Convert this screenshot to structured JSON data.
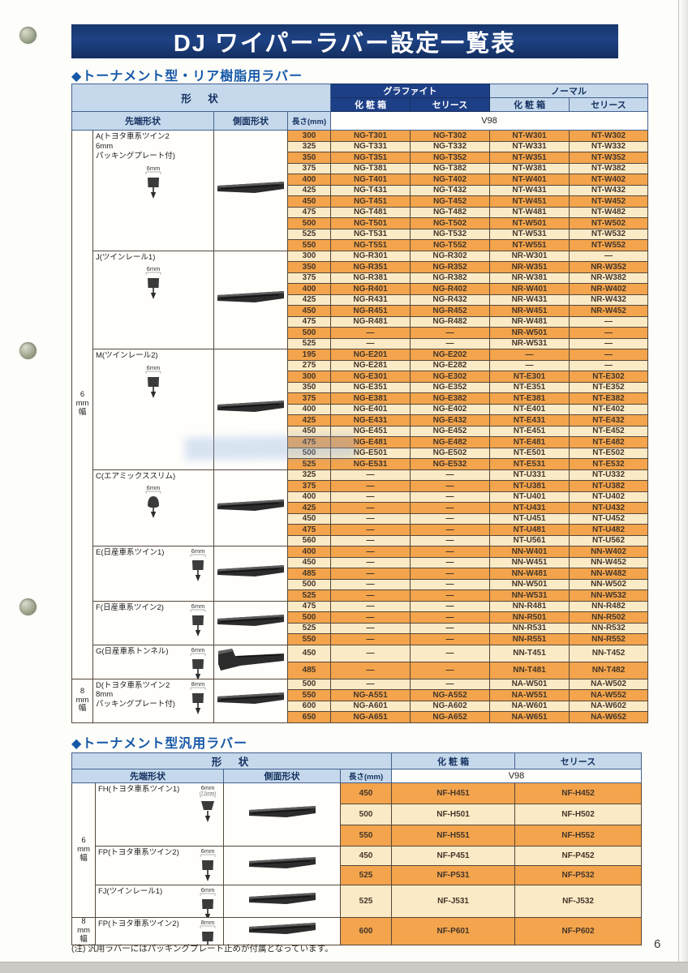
{
  "page": {
    "title": "DJ ワイパーラバー設定一覧表",
    "note": "(注) 汎用ラバーにはパッキングプレート止めが付属となっています。",
    "page_number": "6"
  },
  "colors": {
    "title_bar_navy": "#18376e",
    "header_navy": "#1d3f86",
    "header_light_blue": "#c6d9ec",
    "section_heading_blue": "#1558a8",
    "row_orange": "#f3a44c",
    "row_cream": "#fbeac6"
  },
  "table1": {
    "section_title": "◆トーナメント型・リア樹脂用ラバー",
    "headers": {
      "shape": "形　状",
      "graphite": "グラファイト",
      "normal": "ノーマル",
      "box": "化 粧 箱",
      "series": "セリース",
      "tip": "先端形状",
      "side": "側面形状",
      "length": "長さ(mm)",
      "v98": "V98"
    },
    "width_groups": [
      {
        "label": "6\nmm\n幅",
        "rows": 49
      },
      {
        "label": "8\nmm\n幅",
        "rows": 4
      }
    ],
    "groups": [
      {
        "id": "A",
        "label": "A(トヨタ車系ツイン2\n 6mm\n パッキングプレート付)",
        "size": "6mm",
        "tip_icon": "tip-cross-section-icon",
        "side_icon": "side-profile-photo",
        "rows": [
          {
            "len": "300",
            "p": [
              "NG-T301",
              "NG-T302",
              "NT-W301",
              "NT-W302"
            ]
          },
          {
            "len": "325",
            "p": [
              "NG-T331",
              "NG-T332",
              "NT-W331",
              "NT-W332"
            ]
          },
          {
            "len": "350",
            "p": [
              "NG-T351",
              "NG-T352",
              "NT-W351",
              "NT-W352"
            ]
          },
          {
            "len": "375",
            "p": [
              "NG-T381",
              "NG-T382",
              "NT-W381",
              "NT-W382"
            ]
          },
          {
            "len": "400",
            "p": [
              "NG-T401",
              "NG-T402",
              "NT-W401",
              "NT-W402"
            ]
          },
          {
            "len": "425",
            "p": [
              "NG-T431",
              "NG-T432",
              "NT-W431",
              "NT-W432"
            ]
          },
          {
            "len": "450",
            "p": [
              "NG-T451",
              "NG-T452",
              "NT-W451",
              "NT-W452"
            ]
          },
          {
            "len": "475",
            "p": [
              "NG-T481",
              "NG-T482",
              "NT-W481",
              "NT-W482"
            ]
          },
          {
            "len": "500",
            "p": [
              "NG-T501",
              "NG-T502",
              "NT-W501",
              "NT-W502"
            ]
          },
          {
            "len": "525",
            "p": [
              "NG-T531",
              "NG-T532",
              "NT-W531",
              "NT-W532"
            ]
          },
          {
            "len": "550",
            "p": [
              "NG-T551",
              "NG-T552",
              "NT-W551",
              "NT-W552"
            ]
          }
        ]
      },
      {
        "id": "J",
        "label": "J(ツインレール1)",
        "size": "6mm",
        "tip_icon": "tip-cross-section-icon",
        "side_icon": "side-profile-photo",
        "rows": [
          {
            "len": "300",
            "p": [
              "NG-R301",
              "NG-R302",
              "NR-W301",
              "―"
            ]
          },
          {
            "len": "350",
            "p": [
              "NG-R351",
              "NG-R352",
              "NR-W351",
              "NR-W352"
            ]
          },
          {
            "len": "375",
            "p": [
              "NG-R381",
              "NG-R382",
              "NR-W381",
              "NR-W382"
            ]
          },
          {
            "len": "400",
            "p": [
              "NG-R401",
              "NG-R402",
              "NR-W401",
              "NR-W402"
            ]
          },
          {
            "len": "425",
            "p": [
              "NG-R431",
              "NG-R432",
              "NR-W431",
              "NR-W432"
            ]
          },
          {
            "len": "450",
            "p": [
              "NG-R451",
              "NG-R452",
              "NR-W451",
              "NR-W452"
            ]
          },
          {
            "len": "475",
            "p": [
              "NG-R481",
              "NG-R482",
              "NR-W481",
              "―"
            ]
          },
          {
            "len": "500",
            "p": [
              "―",
              "―",
              "NR-W501",
              "―"
            ]
          },
          {
            "len": "525",
            "p": [
              "―",
              "―",
              "NR-W531",
              "―"
            ]
          }
        ]
      },
      {
        "id": "M",
        "label": "M(ツインレール2)",
        "size": "6mm",
        "tip_icon": "tip-cross-section-icon",
        "side_icon": "side-profile-photo",
        "rows": [
          {
            "len": "195",
            "p": [
              "NG-E201",
              "NG-E202",
              "―",
              "―"
            ]
          },
          {
            "len": "275",
            "p": [
              "NG-E281",
              "NG-E282",
              "―",
              "―"
            ]
          },
          {
            "len": "300",
            "p": [
              "NG-E301",
              "NG-E302",
              "NT-E301",
              "NT-E302"
            ]
          },
          {
            "len": "350",
            "p": [
              "NG-E351",
              "NG-E352",
              "NT-E351",
              "NT-E352"
            ]
          },
          {
            "len": "375",
            "p": [
              "NG-E381",
              "NG-E382",
              "NT-E381",
              "NT-E382"
            ]
          },
          {
            "len": "400",
            "p": [
              "NG-E401",
              "NG-E402",
              "NT-E401",
              "NT-E402"
            ]
          },
          {
            "len": "425",
            "p": [
              "NG-E431",
              "NG-E432",
              "NT-E431",
              "NT-E432"
            ]
          },
          {
            "len": "450",
            "p": [
              "NG-E451",
              "NG-E452",
              "NT-E451",
              "NT-E452"
            ]
          },
          {
            "len": "475",
            "p": [
              "NG-E481",
              "NG-E482",
              "NT-E481",
              "NT-E482"
            ]
          },
          {
            "len": "500",
            "p": [
              "NG-E501",
              "NG-E502",
              "NT-E501",
              "NT-E502"
            ]
          },
          {
            "len": "525",
            "p": [
              "NG-E531",
              "NG-E532",
              "NT-E531",
              "NT-E532"
            ]
          }
        ]
      },
      {
        "id": "C",
        "label": "C(エアミックススリム)",
        "size": "6mm",
        "tip_icon": "tip-cross-section-icon",
        "side_icon": "side-profile-photo",
        "rows": [
          {
            "len": "325",
            "p": [
              "―",
              "―",
              "NT-U331",
              "NT-U332"
            ]
          },
          {
            "len": "375",
            "p": [
              "―",
              "―",
              "NT-U381",
              "NT-U382"
            ]
          },
          {
            "len": "400",
            "p": [
              "―",
              "―",
              "NT-U401",
              "NT-U402"
            ]
          },
          {
            "len": "425",
            "p": [
              "―",
              "―",
              "NT-U431",
              "NT-U432"
            ]
          },
          {
            "len": "450",
            "p": [
              "―",
              "―",
              "NT-U451",
              "NT-U452"
            ]
          },
          {
            "len": "475",
            "p": [
              "―",
              "―",
              "NT-U481",
              "NT-U482"
            ]
          },
          {
            "len": "560",
            "p": [
              "―",
              "―",
              "NT-U561",
              "NT-U562"
            ]
          }
        ]
      },
      {
        "id": "E",
        "label": "E(日産車系ツイン1)",
        "size": "6mm",
        "tip_icon": "tip-cross-section-icon",
        "side_icon": "side-profile-photo",
        "rows": [
          {
            "len": "400",
            "p": [
              "―",
              "―",
              "NN-W401",
              "NN-W402"
            ]
          },
          {
            "len": "450",
            "p": [
              "―",
              "―",
              "NN-W451",
              "NN-W452"
            ]
          },
          {
            "len": "485",
            "p": [
              "―",
              "―",
              "NN-W481",
              "NN-W482"
            ]
          },
          {
            "len": "500",
            "p": [
              "―",
              "―",
              "NN-W501",
              "NN-W502"
            ]
          },
          {
            "len": "525",
            "p": [
              "―",
              "―",
              "NN-W531",
              "NN-W532"
            ]
          }
        ]
      },
      {
        "id": "F",
        "label": "F(日産車系ツイン2)",
        "size": "6mm",
        "tip_icon": "tip-cross-section-icon",
        "side_icon": "side-profile-photo",
        "rows": [
          {
            "len": "475",
            "p": [
              "―",
              "―",
              "NN-R481",
              "NN-R482"
            ]
          },
          {
            "len": "500",
            "p": [
              "―",
              "―",
              "NN-R501",
              "NN-R502"
            ]
          },
          {
            "len": "525",
            "p": [
              "―",
              "―",
              "NN-R531",
              "NN-R532"
            ]
          },
          {
            "len": "550",
            "p": [
              "―",
              "―",
              "NN-R551",
              "NN-R552"
            ]
          }
        ]
      },
      {
        "id": "G",
        "label": "G(日産車系トンネル)",
        "size": "6mm",
        "tip_icon": "tip-cross-section-icon",
        "side_icon": "side-profile-photo",
        "rows": [
          {
            "len": "450",
            "p": [
              "―",
              "―",
              "NN-T451",
              "NN-T452"
            ]
          },
          {
            "len": "485",
            "p": [
              "―",
              "―",
              "NN-T481",
              "NN-T482"
            ]
          }
        ]
      },
      {
        "id": "D",
        "label": "D(トヨタ車系ツイン2\n 8mm\n パッキングプレート付)",
        "size": "8mm",
        "tip_icon": "tip-cross-section-icon",
        "side_icon": "side-profile-photo",
        "rows": [
          {
            "len": "500",
            "p": [
              "―",
              "―",
              "NA-W501",
              "NA-W502"
            ]
          },
          {
            "len": "550",
            "p": [
              "NG-A551",
              "NG-A552",
              "NA-W551",
              "NA-W552"
            ]
          },
          {
            "len": "600",
            "p": [
              "NG-A601",
              "NG-A602",
              "NA-W601",
              "NA-W602"
            ]
          },
          {
            "len": "650",
            "p": [
              "NG-A651",
              "NG-A652",
              "NA-W651",
              "NA-W652"
            ]
          }
        ]
      }
    ]
  },
  "table2": {
    "section_title": "◆トーナメント型汎用ラバー",
    "headers": {
      "shape": "形　状",
      "box": "化 粧 箱",
      "series": "セリース",
      "tip": "先端形状",
      "side": "側面形状",
      "length": "長さ(mm)",
      "v98": "V98"
    },
    "width_groups": [
      {
        "label": "6\nmm\n幅",
        "rows": 6
      },
      {
        "label": "8\nmm\n幅",
        "rows": 1
      }
    ],
    "groups": [
      {
        "id": "FH",
        "label": "FH(トヨタ車系ツイン1)",
        "size": "6mm",
        "size_sub": "(7.5mm)",
        "tip_icon": "tip-cross-section-icon",
        "side_icon": "side-profile-photo",
        "rows": [
          {
            "len": "450",
            "p": [
              "NF-H451",
              "NF-H452"
            ]
          },
          {
            "len": "500",
            "p": [
              "NF-H501",
              "NF-H502"
            ]
          },
          {
            "len": "550",
            "p": [
              "NF-H551",
              "NF-H552"
            ]
          }
        ]
      },
      {
        "id": "FP",
        "label": "FP(トヨタ車系ツイン2)",
        "size": "6mm",
        "tip_icon": "tip-cross-section-icon",
        "side_icon": "side-profile-photo",
        "rows": [
          {
            "len": "450",
            "p": [
              "NF-P451",
              "NF-P452"
            ]
          },
          {
            "len": "525",
            "p": [
              "NF-P531",
              "NF-P532"
            ]
          }
        ]
      },
      {
        "id": "FJ",
        "label": "FJ(ツインレール1)",
        "size": "6mm",
        "tip_icon": "tip-cross-section-icon",
        "side_icon": "side-profile-photo",
        "rows": [
          {
            "len": "525",
            "p": [
              "NF-J531",
              "NF-J532"
            ]
          }
        ]
      },
      {
        "id": "FP8",
        "label": "FP(トヨタ車系ツイン2)",
        "size": "8mm",
        "tip_icon": "tip-cross-section-icon",
        "side_icon": "side-profile-photo",
        "rows": [
          {
            "len": "600",
            "p": [
              "NF-P601",
              "NF-P602"
            ]
          }
        ]
      }
    ]
  }
}
